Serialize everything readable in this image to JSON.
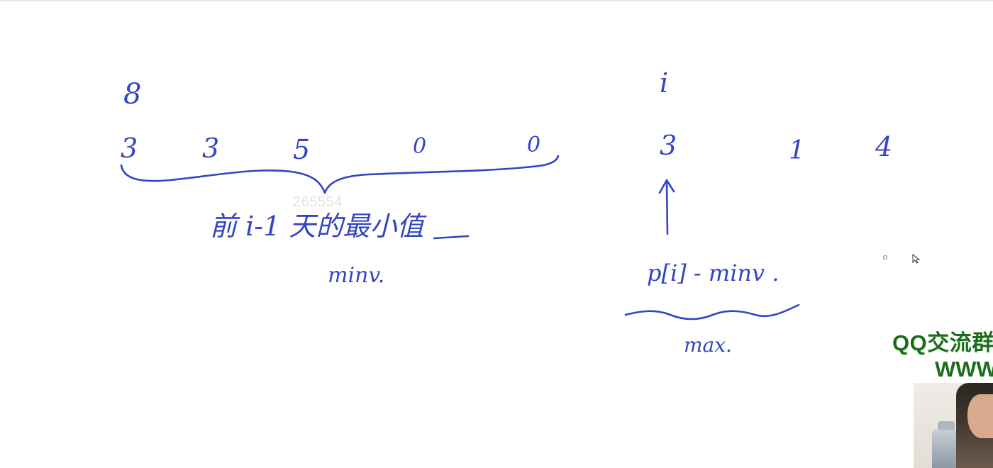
{
  "top_value": "8",
  "prices": [
    "3",
    "3",
    "5",
    "0",
    "0",
    "3",
    "1",
    "4"
  ],
  "index_label": "i",
  "left_note": "前 i-1 天的最小值",
  "left_var": "minv.",
  "right_expr": "p[i] - minv .",
  "right_op": "max.",
  "watermark": "265554",
  "brand": {
    "qq_group": "QQ交流群",
    "website": "WWW"
  },
  "colors": {
    "ink": "#3344c4",
    "brand": "#1b6e1b"
  },
  "icons": [
    "mouse-pointer-icon"
  ]
}
